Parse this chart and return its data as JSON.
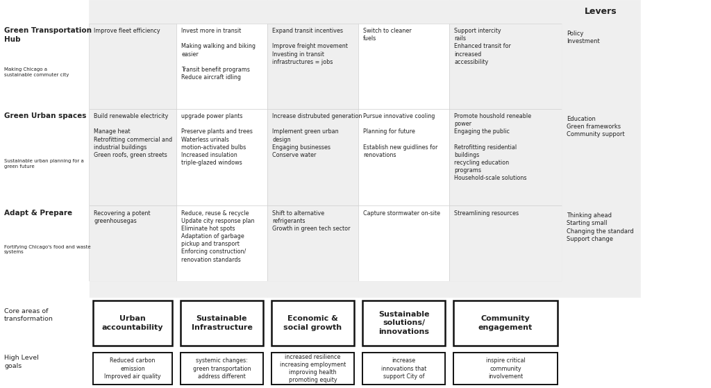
{
  "fig_width": 10.24,
  "fig_height": 5.59,
  "bg_color": "#ffffff",
  "cell_bg_light": "#efefef",
  "cell_bg_white": "#ffffff",
  "text_color": "#222222",
  "rows": [
    {
      "label": "Green Transportation\nHub",
      "sublabel": "Making Chicago a\nsustainable commuter city",
      "cells": [
        "Improve fleet efficiency",
        "Invest more in transit\n\nMaking walking and biking\neasier\n\nTransit benefit programs\nReduce aircraft idling",
        "Expand transit incentives\n\nImprove freight movement\nInvesting in transit\ninfrastructures = jobs",
        "Switch to cleaner\nfuels",
        "Support intercity\nrails\nEnhanced transit for\nincreased\naccessibility"
      ],
      "levers": "Policy\nInvestment"
    },
    {
      "label": "Green Urban spaces",
      "sublabel": "Sustainable urban planning for a\ngreen future",
      "cells": [
        "Build renewable electricity\n\nManage heat\nRetrofitting commercial and\nindustrial buildings\nGreen roofs, green streets",
        "upgrade power plants\n\nPreserve plants and trees\nWaterless urinals\nmotion-activated bulbs\nIncreased insulation\ntriple-glazed windows",
        "Increase distrubuted generation\n\nImplement green urban\ndesign\nEngaging businesses\nConserve water",
        "Pursue innovative cooling\n\nPlanning for future\n\nEstablish new guidlines for\nrenovations",
        "Promote houshold reneable\npower\nEngaging the public\n\nRetrofitting residential\nbuildings\nrecycling education\nprograms\nHousehold-scale solutions"
      ],
      "levers": "Education\nGreen frameworks\nCommunity support"
    },
    {
      "label": "Adapt & Prepare",
      "sublabel": "Fortifying Chicago's food and waste\nsystems",
      "cells": [
        "Recovering a potent\ngreenhousegas",
        "Reduce, reuse & recycle\nUpdate city response plan\nEliminate hot spots\nAdaptation of garbage\npickup and transport\nEnforcing construction/\nrenovation standards",
        "Shift to alternative\nrefrigerants\nGrowth in green tech sector",
        "Capture stormwater on-site",
        "Streamlining resources"
      ],
      "levers": "Thinking ahead\nStarting small\nChanging the standard\nSupport change"
    }
  ],
  "core_areas": [
    "Urban\naccountability",
    "Sustainable\nInfrastructure",
    "Economic &\nsocial growth",
    "Sustainable\nsolutions/\ninnovations",
    "Community\nengagement"
  ],
  "high_level_goals": [
    "Reduced carbon\nemission\nImproved air quality",
    "systemic changes:\ngreen transportation\naddress different",
    "increased resilience\nincreasing employment\nimproving health\npromoting equity",
    "increase\ninnovations that\nsupport City of",
    "inspire critical\ncommunity\ninvolvement"
  ]
}
